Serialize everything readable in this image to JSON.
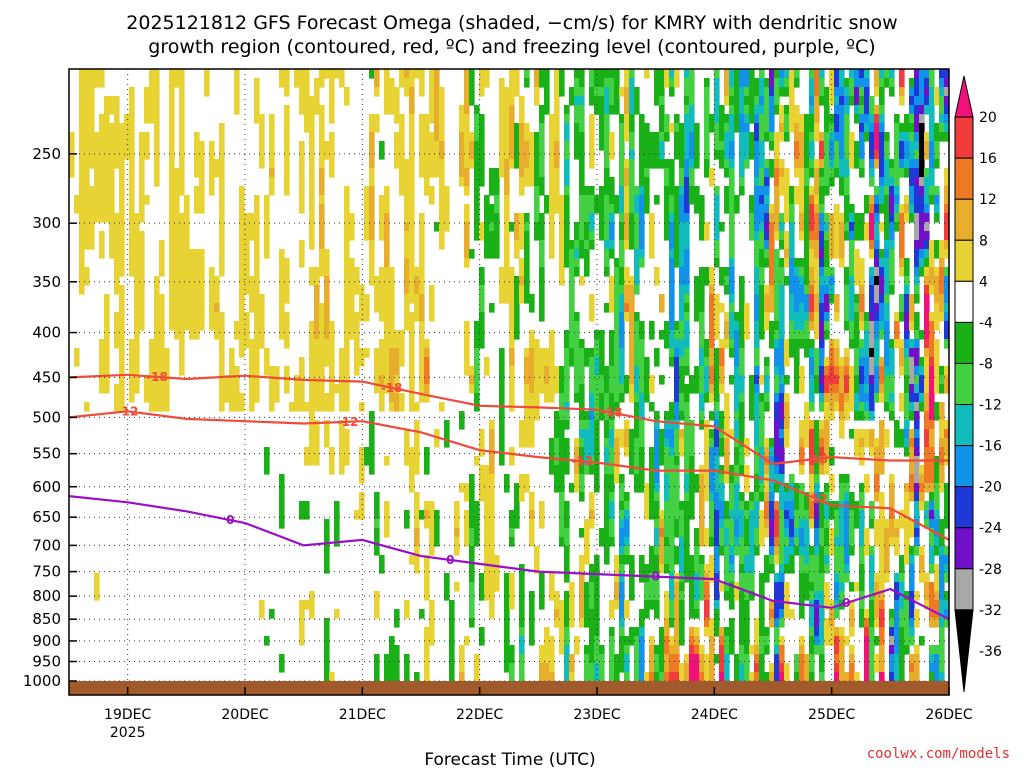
{
  "header": {
    "title_line1": "2025121812 GFS Forecast Omega (shaded, −cm/s) for KMRY with dendritic snow",
    "title_line2": "growth region (contoured, red, ºC) and freezing level (contoured, purple, ºC)"
  },
  "footer": {
    "xlabel": "Forecast Time (UTC)",
    "credit": "coolwx.com/models"
  },
  "colors": {
    "dgz": "#f04a3a",
    "freezing": "#9a10c8",
    "ground": "#a05a2c"
  },
  "chart_data": {
    "type": "heatmap",
    "x_unit": "forecast time (UTC)",
    "xlim": [
      "2025-12-18 12Z",
      "2025-12-26 00Z"
    ],
    "x_ticks": [
      {
        "label": "19DEC",
        "sub": "2025",
        "value": "2025-12-19 00Z"
      },
      {
        "label": "20DEC",
        "sub": "",
        "value": "2025-12-20 00Z"
      },
      {
        "label": "21DEC",
        "sub": "",
        "value": "2025-12-21 00Z"
      },
      {
        "label": "22DEC",
        "sub": "",
        "value": "2025-12-22 00Z"
      },
      {
        "label": "23DEC",
        "sub": "",
        "value": "2025-12-23 00Z"
      },
      {
        "label": "24DEC",
        "sub": "",
        "value": "2025-12-24 00Z"
      },
      {
        "label": "25DEC",
        "sub": "",
        "value": "2025-12-25 00Z"
      },
      {
        "label": "26DEC",
        "sub": "",
        "value": "2025-12-26 00Z"
      }
    ],
    "y_unit": "hPa",
    "ylim": [
      1000,
      200
    ],
    "y_ticks": [
      250,
      300,
      350,
      400,
      450,
      500,
      550,
      600,
      650,
      700,
      750,
      800,
      850,
      900,
      950,
      1000
    ],
    "colorbar": {
      "levels": [
        20,
        16,
        12,
        8,
        4,
        -4,
        -8,
        -12,
        -16,
        -20,
        -24,
        -28,
        -32,
        -36
      ],
      "colors": [
        "#f0127a",
        "#f03c3c",
        "#ee7a26",
        "#e7ae2e",
        "#e7d334",
        "#ffffff",
        "#19b018",
        "#43d043",
        "#12bcbc",
        "#1292e8",
        "#1f39d8",
        "#7010c8",
        "#a8a8a8",
        "#000000"
      ]
    },
    "series": [
      {
        "contour_label": "-18",
        "points": [
          [
            "2025-12-18 12Z",
            450
          ],
          [
            "2025-12-19 00Z",
            447
          ],
          [
            "2025-12-19 12Z",
            452
          ],
          [
            "2025-12-20 00Z",
            448
          ],
          [
            "2025-12-20 12Z",
            453
          ],
          [
            "2025-12-21 00Z",
            455
          ],
          [
            "2025-12-21 12Z",
            470
          ],
          [
            "2025-12-22 00Z",
            485
          ],
          [
            "2025-12-22 12Z",
            487
          ],
          [
            "2025-12-23 00Z",
            490
          ],
          [
            "2025-12-23 12Z",
            505
          ],
          [
            "2025-12-24 00Z",
            512
          ],
          [
            "2025-12-24 12Z",
            565
          ],
          [
            "2025-12-25 00Z",
            555
          ],
          [
            "2025-12-25 12Z",
            560
          ],
          [
            "2025-12-26 00Z",
            560
          ]
        ],
        "labels_at": [
          "2025-12-19 06Z",
          "2025-12-21 06Z",
          "2025-12-23 03Z",
          "2025-12-24 21Z"
        ]
      },
      {
        "contour_label": "-12",
        "points": [
          [
            "2025-12-18 12Z",
            500
          ],
          [
            "2025-12-19 00Z",
            492
          ],
          [
            "2025-12-19 12Z",
            502
          ],
          [
            "2025-12-20 00Z",
            505
          ],
          [
            "2025-12-20 12Z",
            508
          ],
          [
            "2025-12-21 00Z",
            505
          ],
          [
            "2025-12-21 12Z",
            520
          ],
          [
            "2025-12-22 00Z",
            545
          ],
          [
            "2025-12-22 12Z",
            555
          ],
          [
            "2025-12-23 00Z",
            563
          ],
          [
            "2025-12-23 12Z",
            575
          ],
          [
            "2025-12-24 00Z",
            575
          ],
          [
            "2025-12-24 12Z",
            590
          ],
          [
            "2025-12-25 00Z",
            630
          ],
          [
            "2025-12-25 12Z",
            635
          ],
          [
            "2025-12-26 00Z",
            690
          ]
        ],
        "labels_at": [
          "2025-12-19 00Z",
          "2025-12-20 21Z",
          "2025-12-22 21Z",
          "2025-12-24 21Z"
        ]
      },
      {
        "contour_label": "0",
        "points": [
          [
            "2025-12-18 12Z",
            615
          ],
          [
            "2025-12-19 00Z",
            625
          ],
          [
            "2025-12-19 12Z",
            640
          ],
          [
            "2025-12-20 00Z",
            660
          ],
          [
            "2025-12-20 12Z",
            700
          ],
          [
            "2025-12-21 00Z",
            690
          ],
          [
            "2025-12-21 12Z",
            720
          ],
          [
            "2025-12-22 00Z",
            735
          ],
          [
            "2025-12-22 12Z",
            750
          ],
          [
            "2025-12-23 00Z",
            755
          ],
          [
            "2025-12-23 12Z",
            760
          ],
          [
            "2025-12-24 00Z",
            765
          ],
          [
            "2025-12-24 12Z",
            810
          ],
          [
            "2025-12-25 00Z",
            825
          ],
          [
            "2025-12-25 12Z",
            785
          ],
          [
            "2025-12-26 00Z",
            850
          ]
        ],
        "labels_at": [
          "2025-12-19 21Z",
          "2025-12-21 18Z",
          "2025-12-23 12Z",
          "2025-12-25 03Z"
        ]
      }
    ]
  }
}
